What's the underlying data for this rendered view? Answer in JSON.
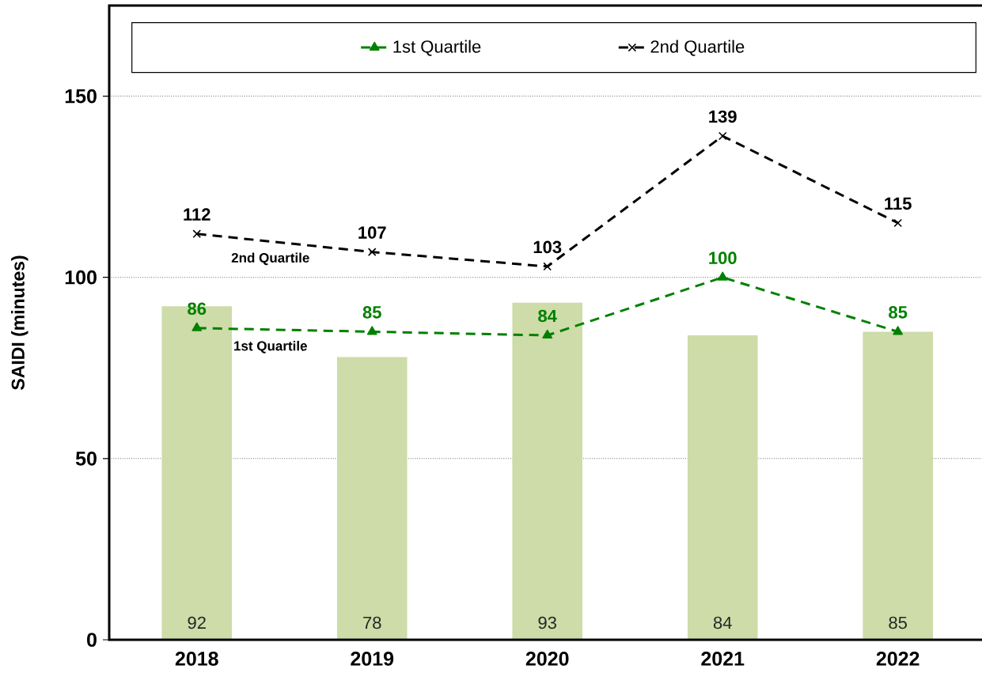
{
  "chart_data": {
    "type": "bar",
    "ylabel": "SAIDI (minutes)",
    "categories": [
      "2018",
      "2019",
      "2020",
      "2021",
      "2022"
    ],
    "series": [
      {
        "color": "#cddca8",
        "values": [
          92,
          78,
          93,
          84,
          85
        ]
      },
      {
        "type": "line",
        "name": "1st Quartile",
        "color": "#008000",
        "values": [
          86,
          85,
          84,
          100,
          85
        ],
        "marker": "triangle",
        "line_style": "dashed"
      },
      {
        "type": "line",
        "name": "2nd Quartile",
        "color": "#000000",
        "values": [
          112,
          107,
          103,
          139,
          115
        ],
        "marker": "cross",
        "line_style": "dashed"
      }
    ],
    "annotations": [
      "1st Quartile",
      "2nd Quartile"
    ],
    "ylim": [
      0,
      175
    ],
    "yticks": [
      0,
      50,
      100,
      150
    ],
    "grid": "y",
    "legend": "top",
    "data_labels": true
  }
}
